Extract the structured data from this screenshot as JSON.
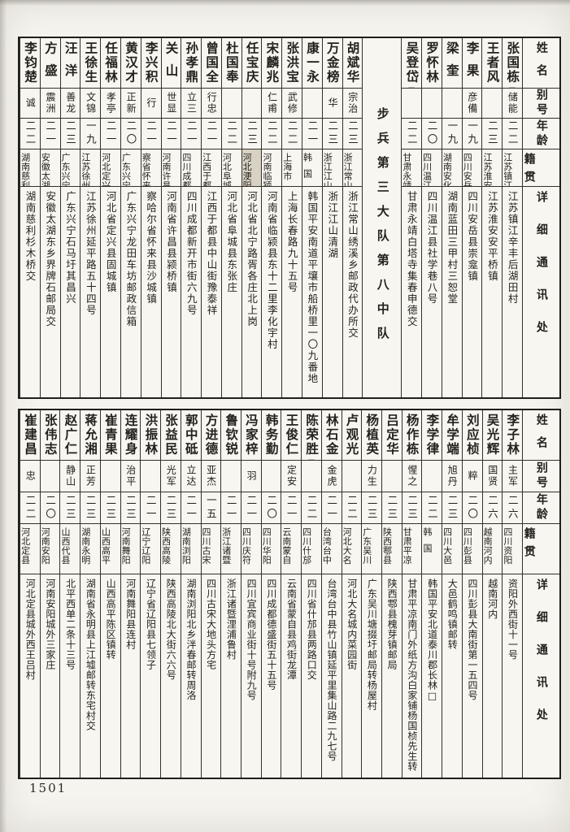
{
  "page": {
    "number": "1501"
  },
  "headers": {
    "name": "姓名",
    "alias": "别号",
    "age": "年龄",
    "origin": "籍贯",
    "address": "详细通讯处"
  },
  "tables": [
    {
      "id": "top",
      "persons": [
        {
          "name": "张国栋",
          "alias": "储能",
          "age": "二二",
          "origin": "江苏镇江",
          "address": "江苏镇江辛丰后湖田村",
          "name_mark": true
        },
        {
          "name": "王者风",
          "alias": "",
          "age": "二三",
          "origin": "江苏淮安",
          "address": "江苏淮安安平桥镇"
        },
        {
          "name": "李果",
          "alias": "彦備",
          "age": "一九",
          "origin": "四川安岳",
          "address": "四川安岳县崇龛镇"
        },
        {
          "name": "梁奎",
          "alias": "",
          "age": "一九",
          "origin": "湖南安化",
          "address": "湖南蓝田三甲村三恕堂"
        },
        {
          "name": "罗怀林",
          "alias": "",
          "age": "二〇",
          "origin": "四川温江",
          "address": "四川温江县社学巷八号"
        },
        {
          "name": "吴登岱",
          "alias": "",
          "age": "二二",
          "origin": "甘肃永靖",
          "address": "甘肃永靖白塔寺集春申德交",
          "name_mark": true
        },
        {
          "divider": true,
          "label": "步兵第三大队第八中队"
        },
        {
          "name": "胡斌华",
          "alias": "宗治",
          "age": "二三",
          "origin": "浙江常山",
          "address": "浙江常山绣溪乡邮政代办所交"
        },
        {
          "name": "万金榜",
          "alias": "华",
          "age": "二三",
          "origin": "浙江江山",
          "address": "浙江江山清湖"
        },
        {
          "name": "康一永",
          "alias": "",
          "age": "二一",
          "origin": "韩国",
          "address": "韩国平安南道平壤市船桥里一〇九番地"
        },
        {
          "name": "张洪宝",
          "alias": "武修",
          "age": "二二",
          "origin": "上海市",
          "address": "上海长春路九十五号"
        },
        {
          "name": "宋麟兆",
          "alias": "仁甫",
          "age": "二二",
          "origin": "河南临颍",
          "address": "河南省临颍县东十二里李化宇村"
        },
        {
          "name": "任宝庆",
          "alias": "",
          "age": "二三",
          "origin": "河北浭阳",
          "address": "河北省北宁路胥各庄北上岗",
          "origin_shaded": true,
          "origin_mark": true
        },
        {
          "name": "杜国奉",
          "alias": "",
          "age": "二二",
          "origin": "河北阜城",
          "address": "河北省阜城县东张庄"
        },
        {
          "name": "曾国全",
          "alias": "行忠",
          "age": "二一",
          "origin": "江西于都",
          "address": "江西于都县中山街豫泰祥"
        },
        {
          "name": "孙孝鼎",
          "alias": "立三",
          "age": "二一",
          "origin": "四川成都",
          "address": "四川成都新开市街六九号"
        },
        {
          "name": "关山",
          "alias": "世显",
          "age": "二一",
          "origin": "河南许昌",
          "address": "河南省许昌县颍桥镇"
        },
        {
          "name": "李兴积",
          "alias": "行",
          "age": "二一",
          "origin": "察省怀来",
          "address": "察哈尔省怀来县沙城镇"
        },
        {
          "name": "黄汉才",
          "alias": "正新",
          "age": "二〇",
          "origin": "广东兴宁",
          "address": "广东兴宁龙田车坊邮政信箱"
        },
        {
          "name": "任福林",
          "alias": "孝亭",
          "age": "二一",
          "origin": "河北定兴",
          "address": "河北省定兴县固城镇"
        },
        {
          "name": "王徐生",
          "alias": "文锦",
          "age": "一九",
          "origin": "江苏徐州",
          "address": "江苏徐州延平路五十四号"
        },
        {
          "name": "汪洋",
          "alias": "善龙",
          "age": "二三",
          "origin": "广东兴宁",
          "address": "广东兴宁石马圩其昌兴"
        },
        {
          "name": "方盛",
          "alias": "震洲",
          "age": "二一",
          "origin": "安徽太湖",
          "address": "安徽太湖东乡界牌石邮局交"
        },
        {
          "name": "李钧楚",
          "alias": "诚",
          "age": "二二",
          "origin": "湖南慈利",
          "address": "湖南慈利杉木桥交"
        }
      ]
    },
    {
      "id": "bottom",
      "persons": [
        {
          "name": "李子林",
          "alias": "主军",
          "age": "二六",
          "origin": "四川资阳",
          "address": "资阳外西街十一号"
        },
        {
          "name": "吴光辉",
          "alias": "国贤",
          "age": "二六",
          "origin": "越南河内",
          "address": "越南河内"
        },
        {
          "name": "刘应桢",
          "alias": "粹",
          "age": "二〇",
          "origin": "四川彭县",
          "address": "四川彭县大南街第一五四号"
        },
        {
          "name": "牟学端",
          "alias": "旭丹",
          "age": "二三",
          "origin": "四川大邑",
          "address": "大邑鹤鸣镇邮转"
        },
        {
          "name": "李学律",
          "alias": "",
          "age": "二二",
          "origin": "韩国",
          "address": "韩国平安北道泰川郡长林□"
        },
        {
          "name": "杨作栋",
          "alias": "惺之",
          "age": "二三",
          "origin": "甘肃平凉",
          "address": "甘肃平凉南门外纸方沟白家铺杨国桢先生转",
          "name_mark": true
        },
        {
          "name": "吕定华",
          "alias": "",
          "age": "二三",
          "origin": "陕西鄠县",
          "address": "陕西鄠县槐芽镇邮局"
        },
        {
          "name": "杨植英",
          "alias": "力生",
          "age": "二三",
          "origin": "广东吴川",
          "address": "广东吴川塘掇圩邮局转杨屋村"
        },
        {
          "name": "卢观光",
          "alias": "",
          "age": "二二",
          "origin": "河北大名",
          "address": "河北大名城内菜园街"
        },
        {
          "name": "林石金",
          "alias": "金虎",
          "age": "二一",
          "origin": "台湾台中",
          "address": "台湾台中县竹山镇延平里集山路二九七号"
        },
        {
          "name": "陈荣胜",
          "alias": "",
          "age": "二二",
          "origin": "四川什邡",
          "address": "四川省什邡县两路口交",
          "name_mark": true
        },
        {
          "name": "王俊仁",
          "alias": "定安",
          "age": "二一",
          "origin": "云南蒙自",
          "address": "云南省蒙自县鸡街龙潭"
        },
        {
          "name": "韩务勤",
          "alias": "",
          "age": "二〇",
          "origin": "四川华阳",
          "address": "四川成都德盛街五十五号"
        },
        {
          "name": "冯家梓",
          "alias": "羽",
          "age": "二一",
          "origin": "四川庆符",
          "address": "四川宜宾商业街十号附九号"
        },
        {
          "name": "鲁钦锐",
          "alias": "",
          "age": "二一",
          "origin": "浙江诸暨",
          "address": "浙江诸暨浬浦鲁村"
        },
        {
          "name": "方进德",
          "alias": "亚杰",
          "age": "一五",
          "origin": "四川古宋",
          "address": "四川古宋大地头方宅"
        },
        {
          "name": "郭中砥",
          "alias": "立达",
          "age": "二一",
          "origin": "湖南浏阳",
          "address": "湖南浏阳北乡泮春邮转周洛"
        },
        {
          "name": "张益民",
          "alias": "光军",
          "age": "二三",
          "origin": "陕西高陵",
          "address": "陕西高陵北大街六六号"
        },
        {
          "name": "洪振林",
          "alias": "",
          "age": "二一",
          "origin": "辽宁辽阳",
          "address": "辽宁省辽阳县七领子"
        },
        {
          "name": "连耀身",
          "alias": "治平",
          "age": "二三",
          "origin": "河南舞阳",
          "address": "河南舞阳县连村"
        },
        {
          "name": "崔青果",
          "alias": "",
          "age": "二三",
          "origin": "山西高平",
          "address": "山西高平陈区镇转"
        },
        {
          "name": "蒋允湘",
          "alias": "正芳",
          "age": "二三",
          "origin": "湖南永明",
          "address": "湖南省永明县上江墟邮转东宅村交"
        },
        {
          "name": "赵广仁",
          "alias": "静山",
          "age": "二三",
          "origin": "山西代县",
          "address": "北平西单二条十三号"
        },
        {
          "name": "张伟志",
          "alias": "",
          "age": "二〇",
          "origin": "河南安阳",
          "address": "河南安阳城外三家庄"
        },
        {
          "name": "崔建昌",
          "alias": "忠",
          "age": "二二",
          "origin": "河北定县",
          "address": "河北定县城外西王吕村"
        }
      ]
    }
  ]
}
